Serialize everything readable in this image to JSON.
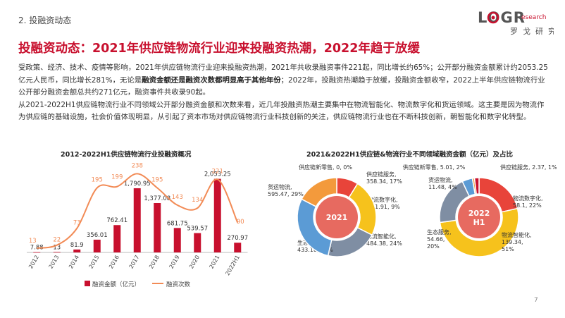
{
  "section_label": "2. 投融资动态",
  "logo": {
    "main": "LOGR",
    "sup": "esearch",
    "sub": "罗戈研究"
  },
  "headline": "投融资动态：2021年供应链物流行业迎来投融资热潮，2022年趋于放缓",
  "paragraph1": {
    "part1": "受政策、经济、技术、疫情等影响，2021年供应链物流行业迎来投融资热潮，2021年共收录融资事件221起，同比增长约65%；公开部分融资金额累计约2053.25亿元人民币，同比增长281%，无论是",
    "bold": "融资金额还是融资次数都明显高于其他年份",
    "part2": "；2022年，投融资热潮趋于放缓，投融资金额收窄，2022上半年供应链物流行业公开部分融资金额总共约271亿元，融资事件共收录90起。"
  },
  "paragraph2": "从2021-2022H1供应链物流行业不同领域公开部分融资金额和次数来看，近几年投融资热潮主要集中在物流智能化、物流数字化和货运领域。这主要是因为物流作为供应链的基础设施，社会价值体现明显，从引起了资本市场对供应链物流行业科技创新的关注，供应链物流行业也在不断科技创新，朝智能化和数字化转型。",
  "chart_data": [
    {
      "type": "bar",
      "title": "2012-2022H1供应链物流行业投融资概况",
      "categories": [
        "2012",
        "2013",
        "2014",
        "2015",
        "2016",
        "2017",
        "2018",
        "2019",
        "2020",
        "2021",
        "2022H1"
      ],
      "series": [
        {
          "name": "融资金额（亿元）",
          "kind": "bar",
          "color": "#c8102e",
          "values": [
            7.88,
            13,
            81.9,
            356.01,
            762.41,
            1790.95,
            1377.08,
            681.75,
            539.57,
            2053.25,
            270.97
          ],
          "labels": [
            "7.88",
            "13",
            "81.9",
            "356.01",
            "762.41",
            "1,790.95",
            "1,377.08",
            "681.75",
            "539.57",
            "2,053.25",
            "270.97"
          ]
        },
        {
          "name": "融资次数",
          "kind": "line",
          "color": "#f28b56",
          "values": [
            13,
            22,
            73,
            195,
            199,
            238,
            195,
            143,
            134,
            221,
            90
          ],
          "labels": [
            "13",
            "22",
            "73",
            "195",
            "199",
            "238",
            "195",
            "143",
            "134",
            "221",
            "90"
          ]
        }
      ],
      "legend": "bottom"
    },
    {
      "type": "pie",
      "title": "2021&2022H1供应链&物流行业不同领域融资金额（亿元）及占比",
      "charts": [
        {
          "center_label": "2021",
          "slices": [
            {
              "name": "物流数字化",
              "value": 181.91,
              "percent": 9,
              "color": "#e8443a",
              "label": "物流数字化,\n181.91, 9%"
            },
            {
              "name": "物流智能化",
              "value": 484.38,
              "percent": 24,
              "color": "#f6c21c",
              "label": "物流智能化,\n484.38, 24%"
            },
            {
              "name": "生态服务",
              "value": 433.16,
              "percent": 21,
              "color": "#7f8ea3",
              "label": "生态服务,\n433.16, 21%"
            },
            {
              "name": "货运物流",
              "value": 595.47,
              "percent": 29,
              "color": "#5b9bd5",
              "label": "货运物流,\n595.47, 29%"
            },
            {
              "name": "供应链服务",
              "value": 358.34,
              "percent": 17,
              "color": "#f39a3c",
              "label": "供应链服务,\n358.34, 17%"
            },
            {
              "name": "供应链新零售",
              "value": 0,
              "percent": 0,
              "color": "#c8102e",
              "label": "供应链新零售, 0, 0%"
            }
          ]
        },
        {
          "center_label": "2022\nH1",
          "slices": [
            {
              "name": "物流数字化",
              "value": 58.1,
              "percent": 22,
              "color": "#e8443a",
              "label": "物流数字化,\n58.1, 22%"
            },
            {
              "name": "物流智能化",
              "value": 139.34,
              "percent": 51,
              "color": "#f6c21c",
              "label": "物流智能化,\n139.34,\n51%"
            },
            {
              "name": "生态服务",
              "value": 54.66,
              "percent": 20,
              "color": "#7f8ea3",
              "label": "生态服务,\n54.66,\n20%"
            },
            {
              "name": "货运物流",
              "value": 11.48,
              "percent": 4,
              "color": "#5b9bd5",
              "label": "货运物流,\n11.48, 4%"
            },
            {
              "name": "供应链服务",
              "value": 2.37,
              "percent": 1,
              "color": "#f39a3c",
              "label": "供应链服务, 2.37, 1%"
            },
            {
              "name": "供应链新零售",
              "value": 5.01,
              "percent": 2,
              "color": "#c8102e",
              "label": "供应链新零售, 5.01, 2%"
            }
          ]
        }
      ]
    }
  ],
  "page_number": "7",
  "colors": {
    "accent": "#c8102e",
    "line": "#f28b56"
  }
}
